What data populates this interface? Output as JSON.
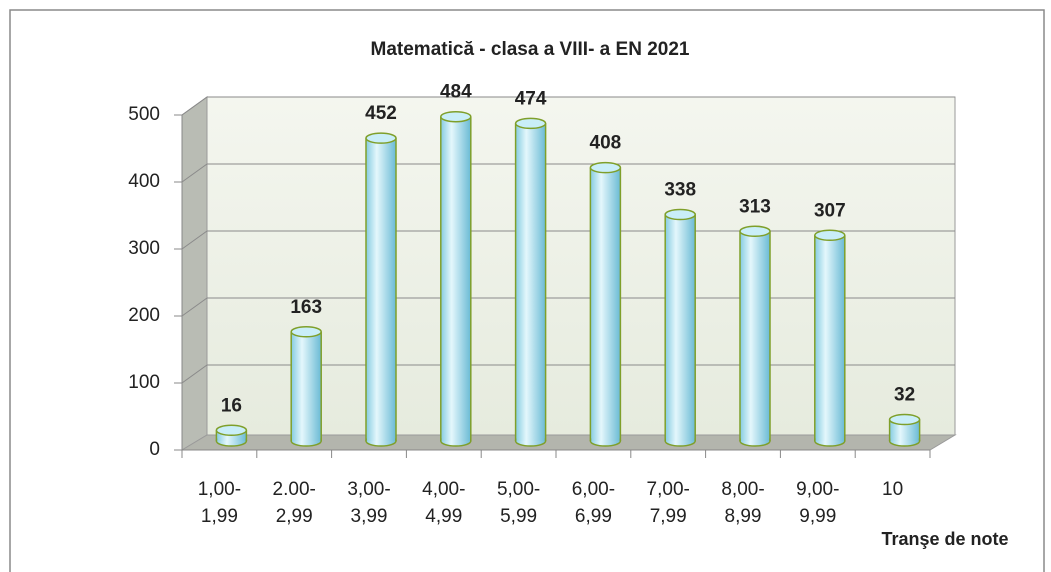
{
  "chart_data": {
    "type": "bar",
    "title": "Matematică - clasa a VIII- a  EN 2021",
    "x_label": "Tranşe de note",
    "categories": [
      [
        "1,00-",
        "1,99"
      ],
      [
        "2.00-",
        "2,99"
      ],
      [
        "3,00-",
        "3,99"
      ],
      [
        "4,00-",
        "4,99"
      ],
      [
        "5,00-",
        "5,99"
      ],
      [
        "6,00-",
        "6,99"
      ],
      [
        "7,00-",
        "7,99"
      ],
      [
        "8,00-",
        "8,99"
      ],
      [
        "9,00-",
        "9,99"
      ],
      [
        "10"
      ]
    ],
    "values": [
      16,
      163,
      452,
      484,
      474,
      408,
      338,
      313,
      307,
      32
    ],
    "color": "#a8dcec",
    "ylim": [
      0,
      500
    ],
    "yticks": [
      0,
      100,
      200,
      300,
      400,
      500
    ],
    "grid": true
  }
}
